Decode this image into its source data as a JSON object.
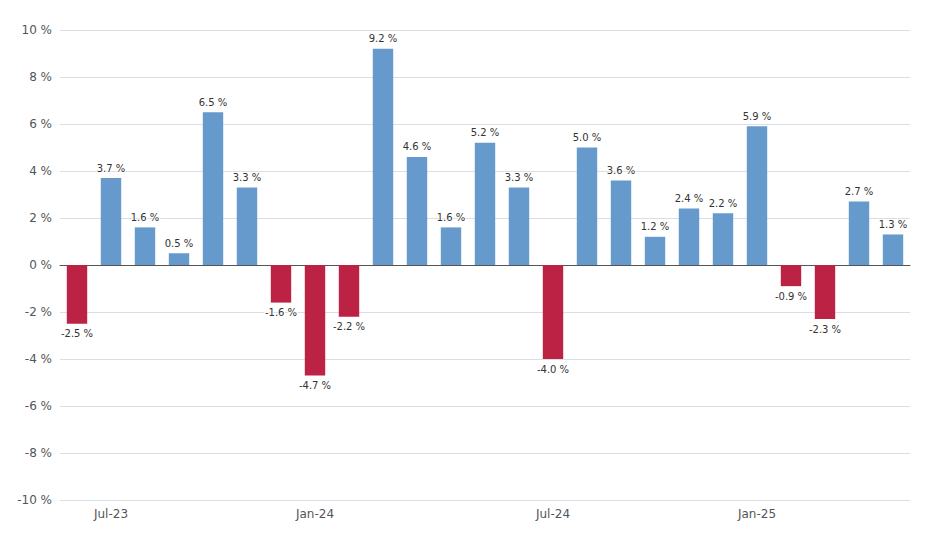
{
  "chart_data": {
    "type": "bar",
    "categories": [
      null,
      "Jul-23",
      null,
      null,
      null,
      null,
      null,
      "Jan-24",
      null,
      null,
      null,
      null,
      null,
      null,
      "Jul-24",
      null,
      null,
      null,
      null,
      null,
      "Jan-25",
      null,
      null,
      null,
      null
    ],
    "values": [
      -2.5,
      3.7,
      1.6,
      0.5,
      6.5,
      3.3,
      -1.6,
      -4.7,
      -2.2,
      9.2,
      4.6,
      1.6,
      5.2,
      3.3,
      -4.0,
      5.0,
      3.6,
      1.2,
      2.4,
      2.2,
      5.9,
      -0.9,
      -2.3,
      2.7,
      1.3
    ],
    "value_labels": [
      "-2.5 %",
      "3.7 %",
      "1.6 %",
      "0.5 %",
      "6.5 %",
      "3.3 %",
      "-1.6 %",
      "-4.7 %",
      "-2.2 %",
      "9.2 %",
      "4.6 %",
      "1.6 %",
      "5.2 %",
      "3.3 %",
      "-4.0 %",
      "5.0 %",
      "3.6 %",
      "1.2 %",
      "2.4 %",
      "2.2 %",
      "5.9 %",
      "-0.9 %",
      "-2.3 %",
      "2.7 %",
      "1.3 %"
    ],
    "colors": [
      "#BB2244",
      "#6699CC",
      "#6699CC",
      "#6699CC",
      "#6699CC",
      "#6699CC",
      "#BB2244",
      "#BB2244",
      "#BB2244",
      "#6699CC",
      "#6699CC",
      "#6699CC",
      "#6699CC",
      "#6699CC",
      "#BB2244",
      "#6699CC",
      "#6699CC",
      "#6699CC",
      "#6699CC",
      "#6699CC",
      "#6699CC",
      "#BB2244",
      "#BB2244",
      "#6699CC",
      "#6699CC"
    ],
    "ylim": [
      -10,
      10
    ],
    "yticks": [
      {
        "value": -10,
        "label": "-10 %"
      },
      {
        "value": -8,
        "label": "-8 %"
      },
      {
        "value": -6,
        "label": "-6 %"
      },
      {
        "value": -4,
        "label": "-4 %"
      },
      {
        "value": -2,
        "label": "-2 %"
      },
      {
        "value": 0,
        "label": "0 %"
      },
      {
        "value": 2,
        "label": "2 %"
      },
      {
        "value": 4,
        "label": "4 %"
      },
      {
        "value": 6,
        "label": "6 %"
      },
      {
        "value": 8,
        "label": "8 %"
      },
      {
        "value": 10,
        "label": "10 %"
      }
    ],
    "grid": true,
    "data_labels": true
  }
}
